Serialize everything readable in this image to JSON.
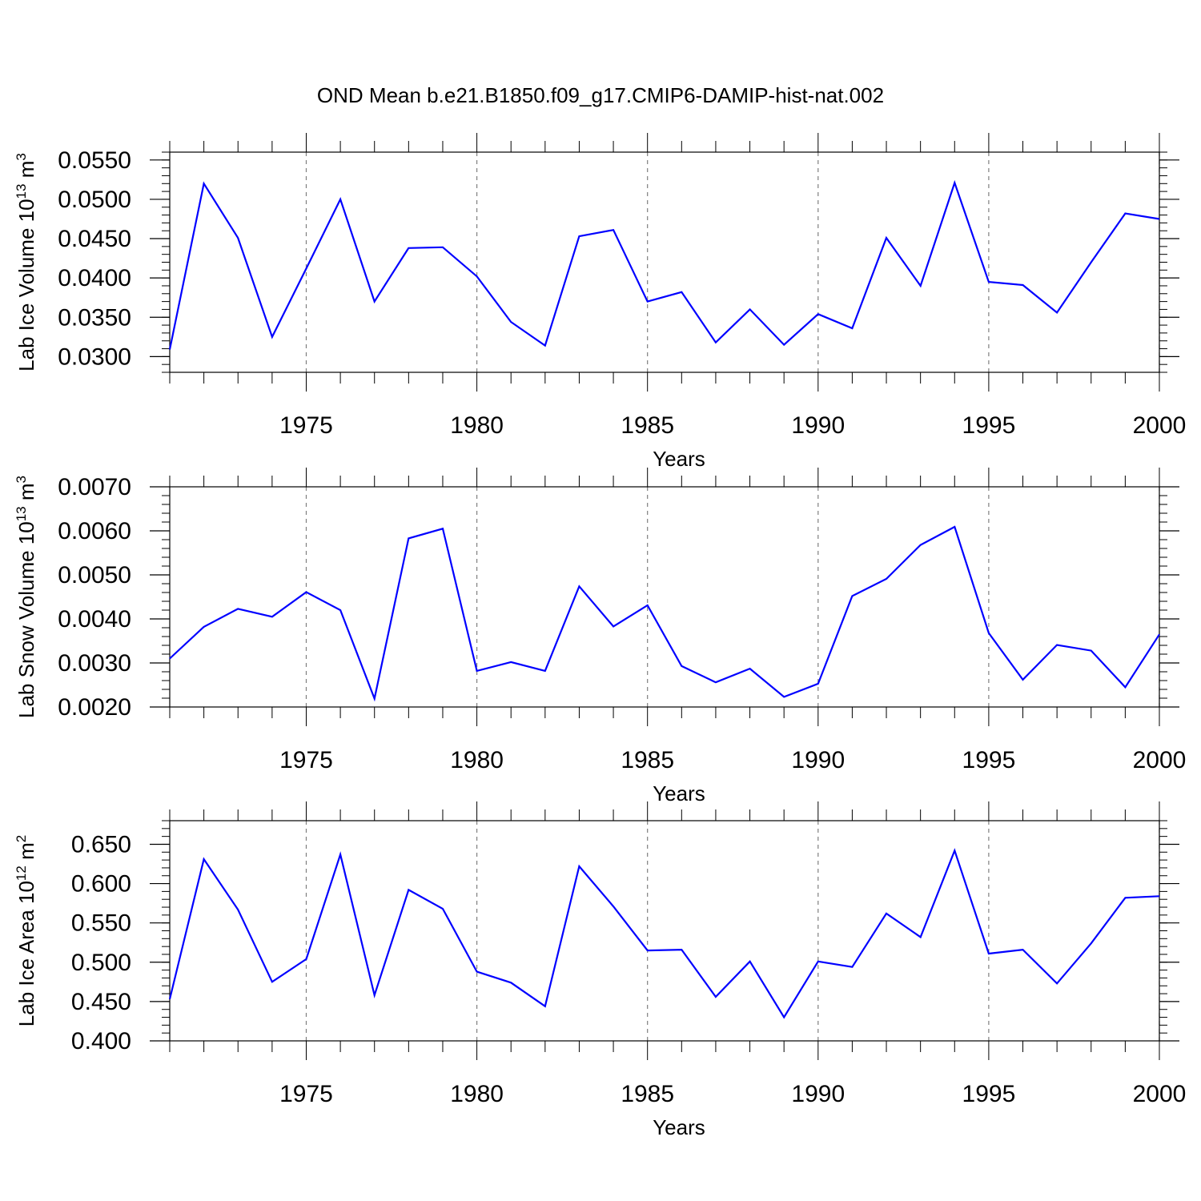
{
  "title": "OND Mean b.e21.B1850.f09_g17.CMIP6-DAMIP-hist-nat.002",
  "colors": {
    "line": "#0000ff",
    "axis": "#000000",
    "grid": "#7f7f7f"
  },
  "chart_data": [
    {
      "type": "line",
      "xlabel": "Years",
      "ylabel": {
        "prefix": "Lab Ice Volume 10",
        "sup": "13",
        "mid": " m",
        "sup2": "3"
      },
      "xlim": [
        1971,
        2000
      ],
      "ylim": [
        0.028,
        0.056
      ],
      "x_ticks": [
        1975,
        1980,
        1985,
        1990,
        1995,
        2000
      ],
      "y_ticks": [
        "0.0300",
        "0.0350",
        "0.0400",
        "0.0450",
        "0.0500",
        "0.0550"
      ],
      "grid": "x-dashed",
      "series": [
        {
          "name": "Lab Ice Volume",
          "x": [
            1971,
            1972,
            1973,
            1974,
            1975,
            1976,
            1977,
            1978,
            1979,
            1980,
            1981,
            1982,
            1983,
            1984,
            1985,
            1986,
            1987,
            1988,
            1989,
            1990,
            1991,
            1992,
            1993,
            1994,
            1995,
            1996,
            1997,
            1998,
            1999,
            2000
          ],
          "values": [
            0.0309,
            0.052,
            0.0451,
            0.0325,
            0.0412,
            0.05,
            0.037,
            0.0438,
            0.0439,
            0.0402,
            0.0344,
            0.0314,
            0.0453,
            0.0461,
            0.037,
            0.0382,
            0.0318,
            0.036,
            0.0315,
            0.0354,
            0.0336,
            0.0451,
            0.039,
            0.0521,
            0.0395,
            0.0391,
            0.0356,
            0.042,
            0.0482,
            0.0475
          ]
        }
      ]
    },
    {
      "type": "line",
      "xlabel": "Years",
      "ylabel": {
        "prefix": "Lab Snow Volume 10",
        "sup": "13",
        "mid": " m",
        "sup2": "3"
      },
      "xlim": [
        1971,
        2000
      ],
      "ylim": [
        0.002,
        0.007
      ],
      "x_ticks": [
        1975,
        1980,
        1985,
        1990,
        1995,
        2000
      ],
      "y_ticks": [
        "0.0020",
        "0.0030",
        "0.0040",
        "0.0050",
        "0.0060",
        "0.0070"
      ],
      "grid": "x-dashed",
      "series": [
        {
          "name": "Lab Snow Volume",
          "x": [
            1971,
            1972,
            1973,
            1974,
            1975,
            1976,
            1977,
            1978,
            1979,
            1980,
            1981,
            1982,
            1983,
            1984,
            1985,
            1986,
            1987,
            1988,
            1989,
            1990,
            1991,
            1992,
            1993,
            1994,
            1995,
            1996,
            1997,
            1998,
            1999,
            2000
          ],
          "values": [
            0.0031,
            0.00382,
            0.00423,
            0.00405,
            0.00461,
            0.0042,
            0.00219,
            0.00583,
            0.00605,
            0.00282,
            0.00302,
            0.00282,
            0.00474,
            0.00383,
            0.00431,
            0.00293,
            0.00256,
            0.00287,
            0.00223,
            0.00253,
            0.00452,
            0.00491,
            0.00568,
            0.00609,
            0.00368,
            0.00262,
            0.00341,
            0.00328,
            0.00245,
            0.00365
          ]
        }
      ]
    },
    {
      "type": "line",
      "xlabel": "Years",
      "ylabel": {
        "prefix": "Lab Ice Area 10",
        "sup": "12",
        "mid": " m",
        "sup2": "2"
      },
      "xlim": [
        1971,
        2000
      ],
      "ylim": [
        0.4,
        0.68
      ],
      "x_ticks": [
        1975,
        1980,
        1985,
        1990,
        1995,
        2000
      ],
      "y_ticks": [
        "0.400",
        "0.450",
        "0.500",
        "0.550",
        "0.600",
        "0.650"
      ],
      "grid": "x-dashed",
      "series": [
        {
          "name": "Lab Ice Area",
          "x": [
            1971,
            1972,
            1973,
            1974,
            1975,
            1976,
            1977,
            1978,
            1979,
            1980,
            1981,
            1982,
            1983,
            1984,
            1985,
            1986,
            1987,
            1988,
            1989,
            1990,
            1991,
            1992,
            1993,
            1994,
            1995,
            1996,
            1997,
            1998,
            1999,
            2000
          ],
          "values": [
            0.453,
            0.631,
            0.567,
            0.475,
            0.504,
            0.637,
            0.458,
            0.592,
            0.568,
            0.488,
            0.474,
            0.444,
            0.622,
            0.571,
            0.515,
            0.516,
            0.456,
            0.501,
            0.43,
            0.501,
            0.494,
            0.562,
            0.532,
            0.642,
            0.511,
            0.516,
            0.473,
            0.524,
            0.582,
            0.584
          ]
        }
      ]
    }
  ]
}
